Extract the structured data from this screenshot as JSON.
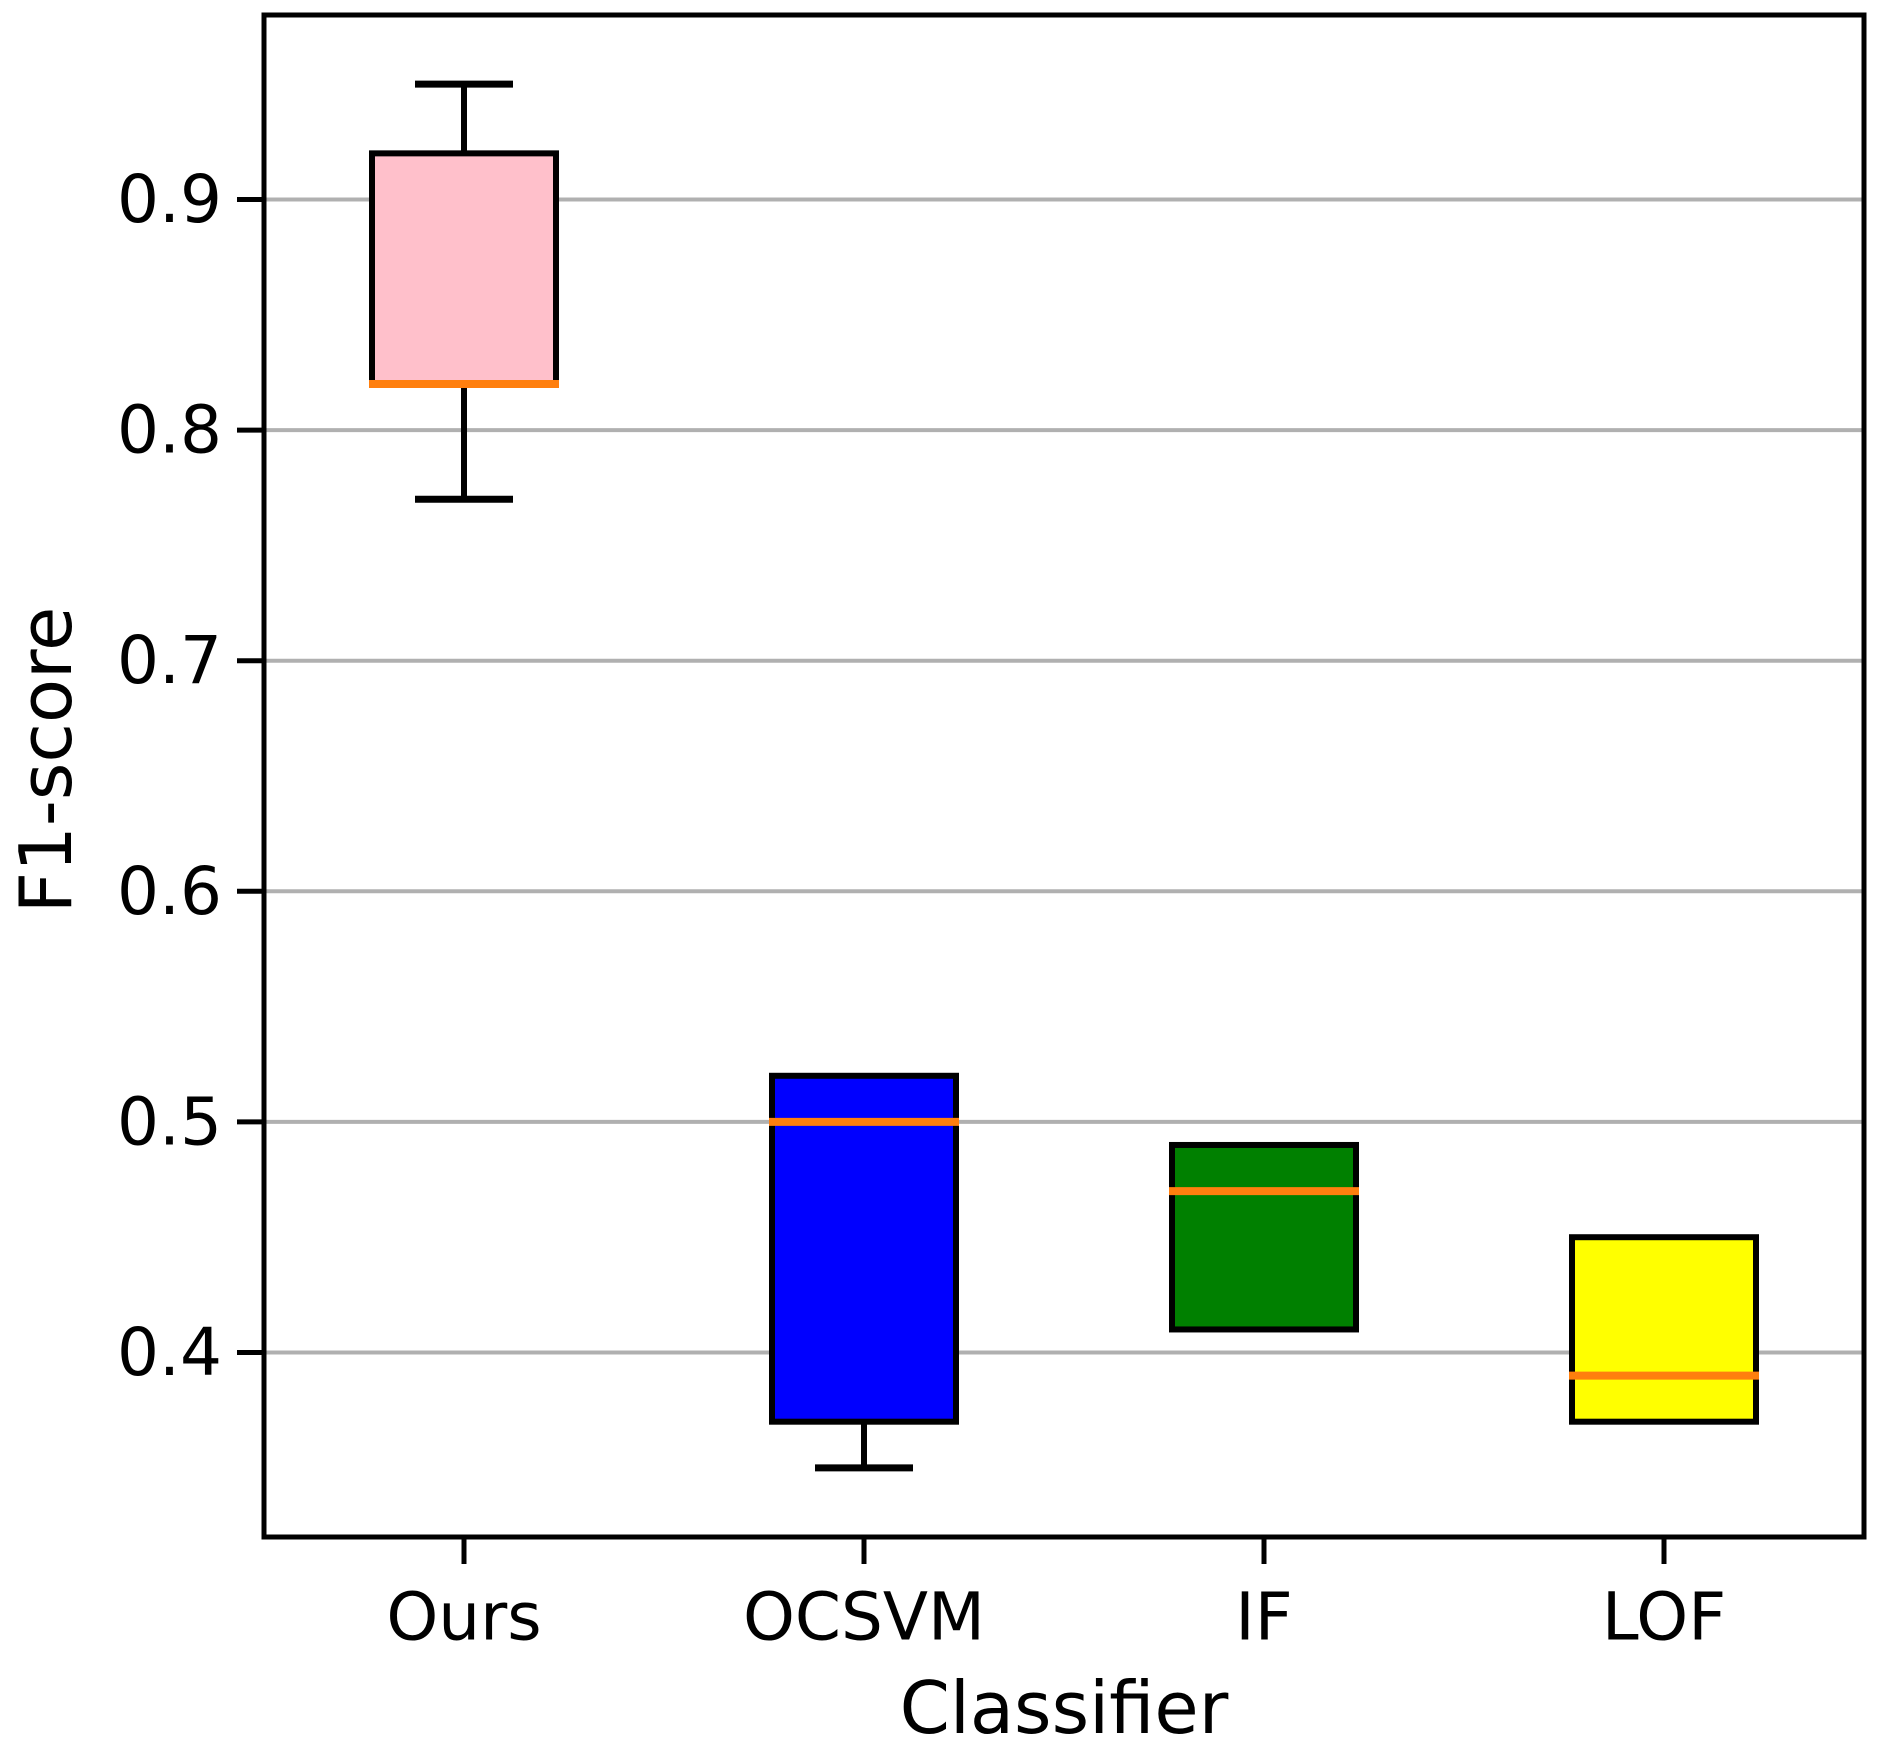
{
  "chart_data": {
    "type": "box",
    "title": "",
    "xlabel": "Classifier",
    "ylabel": "F1-score",
    "categories": [
      "Ours",
      "OCSVM",
      "IF",
      "LOF"
    ],
    "series": [
      {
        "name": "Ours",
        "color": "#ffc0cb",
        "whisker_low": 0.77,
        "q1": 0.82,
        "median": 0.82,
        "q3": 0.92,
        "whisker_high": 0.95
      },
      {
        "name": "OCSVM",
        "color": "#0000ff",
        "whisker_low": 0.35,
        "q1": 0.37,
        "median": 0.5,
        "q3": 0.52,
        "whisker_high": 0.52
      },
      {
        "name": "IF",
        "color": "#008000",
        "whisker_low": 0.41,
        "q1": 0.41,
        "median": 0.47,
        "q3": 0.49,
        "whisker_high": 0.49
      },
      {
        "name": "LOF",
        "color": "#ffff00",
        "whisker_low": 0.37,
        "q1": 0.37,
        "median": 0.39,
        "q3": 0.45,
        "whisker_high": 0.45
      }
    ],
    "yticks": [
      "0.4",
      "0.5",
      "0.6",
      "0.7",
      "0.8",
      "0.9"
    ],
    "ylim": [
      0.32,
      0.98
    ],
    "grid": true,
    "legend_position": "none",
    "colors": {
      "median": "#ff7f0e",
      "gridline": "#b0b0b0",
      "spine": "#000000",
      "tick_label": "#000000"
    }
  }
}
